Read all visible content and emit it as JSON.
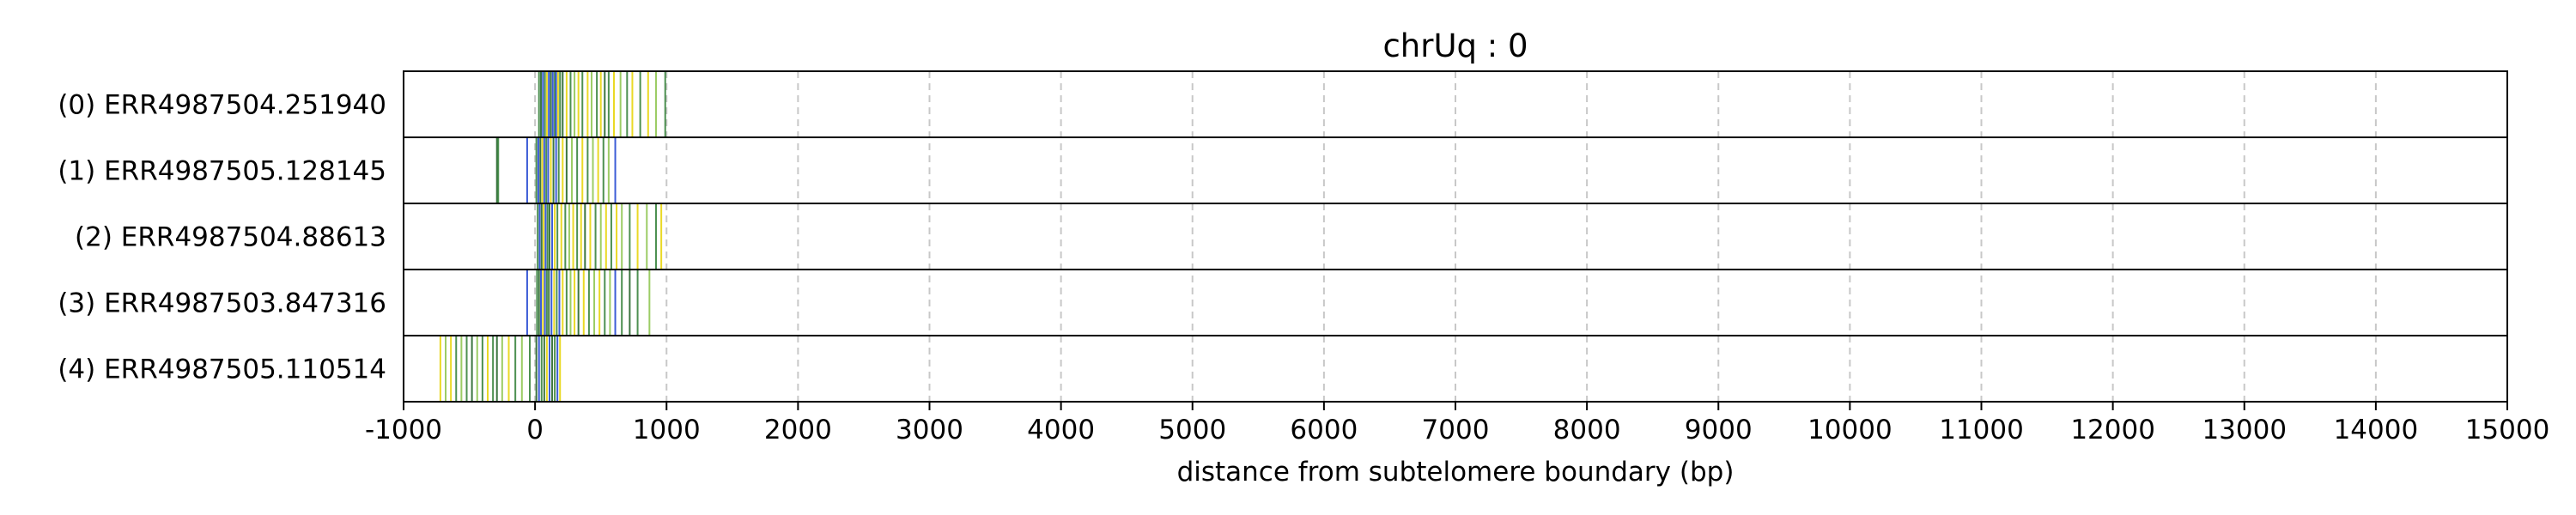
{
  "chart_data": {
    "type": "read-track",
    "title": "chrUq : 0",
    "xlabel": "distance from subtelomere boundary (bp)",
    "xlim": [
      -1000,
      15000
    ],
    "xticks": [
      -1000,
      0,
      1000,
      2000,
      3000,
      4000,
      5000,
      6000,
      7000,
      8000,
      9000,
      10000,
      11000,
      12000,
      13000,
      14000,
      15000
    ],
    "grid": "vertical-dashed",
    "colors": {
      "green": "#2e7d32",
      "darkgreen": "#1b5e20",
      "blue": "#1a3fcf",
      "yellow": "#e6d200",
      "lightgreen": "#8bc34a",
      "grid": "#c8c8c8"
    },
    "reads": [
      {
        "label": "(0) ERR4987504.251940",
        "extent": [
          0,
          1000
        ],
        "marks": [
          {
            "x": 30,
            "c": "green"
          },
          {
            "x": 45,
            "c": "darkgreen"
          },
          {
            "x": 60,
            "c": "blue"
          },
          {
            "x": 75,
            "c": "green"
          },
          {
            "x": 90,
            "c": "yellow"
          },
          {
            "x": 105,
            "c": "blue"
          },
          {
            "x": 120,
            "c": "darkgreen"
          },
          {
            "x": 135,
            "c": "blue"
          },
          {
            "x": 150,
            "c": "green"
          },
          {
            "x": 160,
            "c": "blue"
          },
          {
            "x": 175,
            "c": "yellow"
          },
          {
            "x": 190,
            "c": "green"
          },
          {
            "x": 210,
            "c": "darkgreen"
          },
          {
            "x": 240,
            "c": "yellow"
          },
          {
            "x": 270,
            "c": "green"
          },
          {
            "x": 300,
            "c": "lightgreen"
          },
          {
            "x": 330,
            "c": "yellow"
          },
          {
            "x": 360,
            "c": "green"
          },
          {
            "x": 400,
            "c": "yellow"
          },
          {
            "x": 430,
            "c": "lightgreen"
          },
          {
            "x": 470,
            "c": "green"
          },
          {
            "x": 500,
            "c": "yellow"
          },
          {
            "x": 530,
            "c": "darkgreen"
          },
          {
            "x": 560,
            "c": "green"
          },
          {
            "x": 600,
            "c": "yellow"
          },
          {
            "x": 650,
            "c": "lightgreen"
          },
          {
            "x": 700,
            "c": "green"
          },
          {
            "x": 740,
            "c": "yellow"
          },
          {
            "x": 800,
            "c": "green"
          },
          {
            "x": 860,
            "c": "yellow"
          },
          {
            "x": 920,
            "c": "lightgreen"
          },
          {
            "x": 990,
            "c": "green"
          }
        ]
      },
      {
        "label": "(1) ERR4987505.128145",
        "extent": [
          -300,
          620
        ],
        "marks": [
          {
            "x": -290,
            "c": "darkgreen"
          },
          {
            "x": -280,
            "c": "green"
          },
          {
            "x": -60,
            "c": "blue"
          },
          {
            "x": 10,
            "c": "green"
          },
          {
            "x": 25,
            "c": "blue"
          },
          {
            "x": 40,
            "c": "darkgreen"
          },
          {
            "x": 55,
            "c": "yellow"
          },
          {
            "x": 70,
            "c": "blue"
          },
          {
            "x": 85,
            "c": "green"
          },
          {
            "x": 100,
            "c": "blue"
          },
          {
            "x": 120,
            "c": "yellow"
          },
          {
            "x": 140,
            "c": "darkgreen"
          },
          {
            "x": 160,
            "c": "blue"
          },
          {
            "x": 180,
            "c": "green"
          },
          {
            "x": 210,
            "c": "yellow"
          },
          {
            "x": 240,
            "c": "darkgreen"
          },
          {
            "x": 280,
            "c": "lightgreen"
          },
          {
            "x": 320,
            "c": "green"
          },
          {
            "x": 360,
            "c": "yellow"
          },
          {
            "x": 400,
            "c": "green"
          },
          {
            "x": 440,
            "c": "lightgreen"
          },
          {
            "x": 480,
            "c": "yellow"
          },
          {
            "x": 520,
            "c": "green"
          },
          {
            "x": 560,
            "c": "lightgreen"
          },
          {
            "x": 610,
            "c": "blue"
          }
        ]
      },
      {
        "label": "(2) ERR4987504.88613",
        "extent": [
          0,
          1000
        ],
        "marks": [
          {
            "x": 20,
            "c": "green"
          },
          {
            "x": 35,
            "c": "blue"
          },
          {
            "x": 50,
            "c": "darkgreen"
          },
          {
            "x": 65,
            "c": "yellow"
          },
          {
            "x": 80,
            "c": "blue"
          },
          {
            "x": 95,
            "c": "green"
          },
          {
            "x": 110,
            "c": "darkgreen"
          },
          {
            "x": 130,
            "c": "blue"
          },
          {
            "x": 150,
            "c": "yellow"
          },
          {
            "x": 170,
            "c": "green"
          },
          {
            "x": 200,
            "c": "yellow"
          },
          {
            "x": 230,
            "c": "green"
          },
          {
            "x": 260,
            "c": "lightgreen"
          },
          {
            "x": 290,
            "c": "yellow"
          },
          {
            "x": 320,
            "c": "green"
          },
          {
            "x": 350,
            "c": "yellow"
          },
          {
            "x": 380,
            "c": "darkgreen"
          },
          {
            "x": 420,
            "c": "yellow"
          },
          {
            "x": 460,
            "c": "green"
          },
          {
            "x": 500,
            "c": "lightgreen"
          },
          {
            "x": 540,
            "c": "yellow"
          },
          {
            "x": 580,
            "c": "green"
          },
          {
            "x": 620,
            "c": "yellow"
          },
          {
            "x": 660,
            "c": "lightgreen"
          },
          {
            "x": 720,
            "c": "green"
          },
          {
            "x": 780,
            "c": "yellow"
          },
          {
            "x": 850,
            "c": "lightgreen"
          },
          {
            "x": 920,
            "c": "green"
          },
          {
            "x": 960,
            "c": "yellow"
          }
        ]
      },
      {
        "label": "(3) ERR4987503.847316",
        "extent": [
          0,
          880
        ],
        "marks": [
          {
            "x": -60,
            "c": "blue"
          },
          {
            "x": 15,
            "c": "green"
          },
          {
            "x": 30,
            "c": "darkgreen"
          },
          {
            "x": 45,
            "c": "blue"
          },
          {
            "x": 60,
            "c": "yellow"
          },
          {
            "x": 75,
            "c": "blue"
          },
          {
            "x": 90,
            "c": "green"
          },
          {
            "x": 105,
            "c": "darkgreen"
          },
          {
            "x": 125,
            "c": "blue"
          },
          {
            "x": 145,
            "c": "yellow"
          },
          {
            "x": 165,
            "c": "green"
          },
          {
            "x": 185,
            "c": "blue"
          },
          {
            "x": 210,
            "c": "yellow"
          },
          {
            "x": 240,
            "c": "green"
          },
          {
            "x": 270,
            "c": "lightgreen"
          },
          {
            "x": 300,
            "c": "yellow"
          },
          {
            "x": 330,
            "c": "darkgreen"
          },
          {
            "x": 370,
            "c": "yellow"
          },
          {
            "x": 410,
            "c": "green"
          },
          {
            "x": 450,
            "c": "lightgreen"
          },
          {
            "x": 490,
            "c": "yellow"
          },
          {
            "x": 530,
            "c": "green"
          },
          {
            "x": 570,
            "c": "lightgreen"
          },
          {
            "x": 610,
            "c": "blue"
          },
          {
            "x": 660,
            "c": "green"
          },
          {
            "x": 720,
            "c": "darkgreen"
          },
          {
            "x": 780,
            "c": "green"
          },
          {
            "x": 870,
            "c": "lightgreen"
          }
        ]
      },
      {
        "label": "(4) ERR4987505.110514",
        "extent": [
          -720,
          200
        ],
        "marks": [
          {
            "x": -720,
            "c": "yellow"
          },
          {
            "x": -680,
            "c": "lightgreen"
          },
          {
            "x": -640,
            "c": "yellow"
          },
          {
            "x": -600,
            "c": "green"
          },
          {
            "x": -560,
            "c": "lightgreen"
          },
          {
            "x": -520,
            "c": "green"
          },
          {
            "x": -480,
            "c": "darkgreen"
          },
          {
            "x": -440,
            "c": "lightgreen"
          },
          {
            "x": -400,
            "c": "green"
          },
          {
            "x": -360,
            "c": "yellow"
          },
          {
            "x": -320,
            "c": "green"
          },
          {
            "x": -290,
            "c": "darkgreen"
          },
          {
            "x": -250,
            "c": "lightgreen"
          },
          {
            "x": -200,
            "c": "yellow"
          },
          {
            "x": -150,
            "c": "green"
          },
          {
            "x": -100,
            "c": "lightgreen"
          },
          {
            "x": -40,
            "c": "green"
          },
          {
            "x": 10,
            "c": "darkgreen"
          },
          {
            "x": 30,
            "c": "blue"
          },
          {
            "x": 50,
            "c": "green"
          },
          {
            "x": 70,
            "c": "darkgreen"
          },
          {
            "x": 90,
            "c": "yellow"
          },
          {
            "x": 110,
            "c": "blue"
          },
          {
            "x": 130,
            "c": "darkgreen"
          },
          {
            "x": 150,
            "c": "green"
          },
          {
            "x": 170,
            "c": "blue"
          },
          {
            "x": 190,
            "c": "yellow"
          }
        ]
      }
    ]
  }
}
